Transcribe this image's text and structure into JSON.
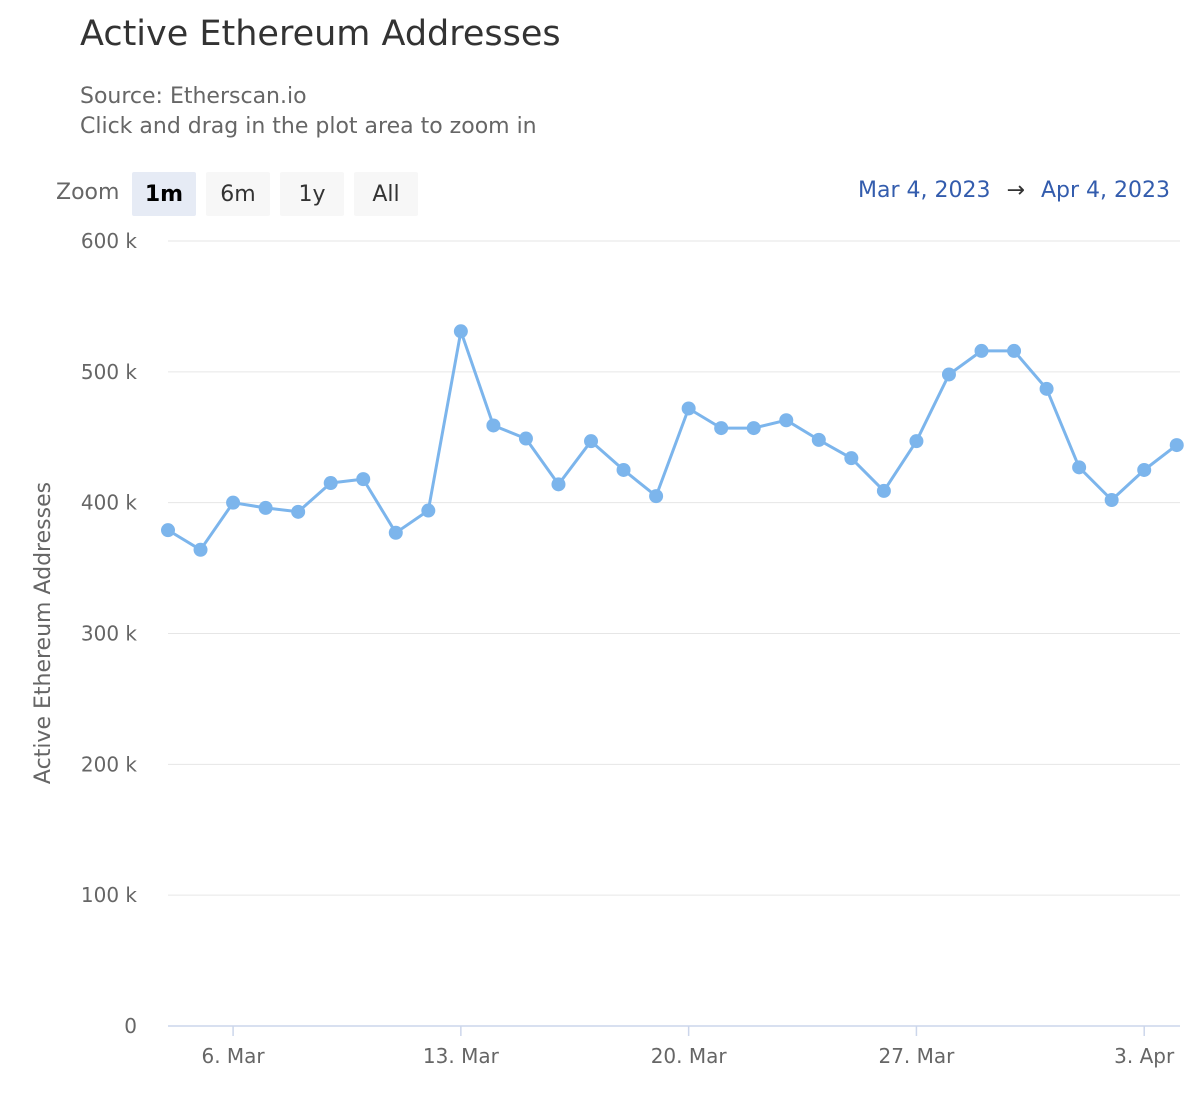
{
  "header": {
    "title": "Active Ethereum Addresses",
    "source": "Source: Etherscan.io",
    "hint": "Click and drag in the plot area to zoom in"
  },
  "range_selector": {
    "zoom_label": "Zoom",
    "buttons": [
      "1m",
      "6m",
      "1y",
      "All"
    ],
    "selected": "1m",
    "from": "Mar 4, 2023",
    "arrow": "→",
    "to": "Apr 4, 2023"
  },
  "colors": {
    "series": "#7cb5ec",
    "grid": "#e6e6e6",
    "axis": "#ccd6eb"
  },
  "chart_data": {
    "type": "line",
    "title": "Active Ethereum Addresses",
    "ylabel": "Active Ethereum Addresses",
    "xlabel": "",
    "ylim": [
      0,
      600000
    ],
    "y_ticks": [
      0,
      100000,
      200000,
      300000,
      400000,
      500000,
      600000
    ],
    "y_tick_labels": [
      "0",
      "100 k",
      "200 k",
      "300 k",
      "400 k",
      "500 k",
      "600 k"
    ],
    "x_start_day": 4,
    "x_range_days": [
      4,
      35.1
    ],
    "x_ticks": [
      6,
      13,
      20,
      27,
      34
    ],
    "x_tick_labels": [
      "6. Mar",
      "13. Mar",
      "20. Mar",
      "27. Mar",
      "3. Apr"
    ],
    "grid": true,
    "series": [
      {
        "name": "Active Ethereum Addresses",
        "x": [
          "2023-03-04",
          "2023-03-05",
          "2023-03-06",
          "2023-03-07",
          "2023-03-08",
          "2023-03-09",
          "2023-03-10",
          "2023-03-11",
          "2023-03-12",
          "2023-03-13",
          "2023-03-14",
          "2023-03-15",
          "2023-03-16",
          "2023-03-17",
          "2023-03-18",
          "2023-03-19",
          "2023-03-20",
          "2023-03-21",
          "2023-03-22",
          "2023-03-23",
          "2023-03-24",
          "2023-03-25",
          "2023-03-26",
          "2023-03-27",
          "2023-03-28",
          "2023-03-29",
          "2023-03-30",
          "2023-03-31",
          "2023-04-01",
          "2023-04-02",
          "2023-04-03",
          "2023-04-04"
        ],
        "values": [
          379000,
          364000,
          400000,
          396000,
          393000,
          415000,
          418000,
          377000,
          394000,
          531000,
          459000,
          449000,
          414000,
          447000,
          425000,
          405000,
          472000,
          457000,
          457000,
          463000,
          448000,
          434000,
          409000,
          447000,
          498000,
          516000,
          516000,
          487000,
          427000,
          402000,
          425000,
          444000
        ]
      }
    ]
  }
}
